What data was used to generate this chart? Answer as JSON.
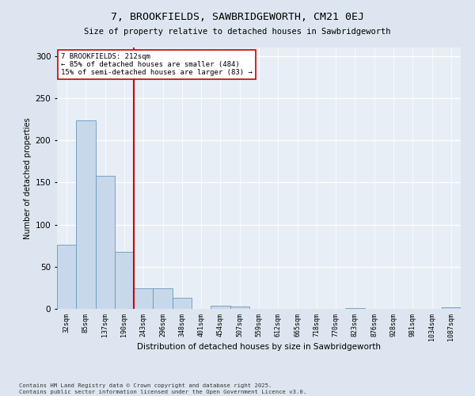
{
  "title": "7, BROOKFIELDS, SAWBRIDGEWORTH, CM21 0EJ",
  "subtitle": "Size of property relative to detached houses in Sawbridgeworth",
  "xlabel": "Distribution of detached houses by size in Sawbridgeworth",
  "ylabel": "Number of detached properties",
  "bar_color": "#c8d8eb",
  "bar_edge_color": "#6699bb",
  "vline_color": "#cc0000",
  "vline_x": 3.5,
  "annotation_text": "7 BROOKFIELDS: 212sqm\n← 85% of detached houses are smaller (484)\n15% of semi-detached houses are larger (83) →",
  "annotation_box_color": "#ffffff",
  "annotation_box_edge": "#cc0000",
  "categories": [
    "32sqm",
    "85sqm",
    "137sqm",
    "190sqm",
    "243sqm",
    "296sqm",
    "348sqm",
    "401sqm",
    "454sqm",
    "507sqm",
    "559sqm",
    "612sqm",
    "665sqm",
    "718sqm",
    "770sqm",
    "823sqm",
    "876sqm",
    "928sqm",
    "981sqm",
    "1034sqm",
    "1087sqm"
  ],
  "values": [
    76,
    224,
    158,
    68,
    24,
    24,
    13,
    0,
    4,
    3,
    0,
    0,
    0,
    0,
    0,
    1,
    0,
    0,
    0,
    0,
    2
  ],
  "ylim": [
    0,
    310
  ],
  "yticks": [
    0,
    50,
    100,
    150,
    200,
    250,
    300
  ],
  "footer1": "Contains HM Land Registry data © Crown copyright and database right 2025.",
  "footer2": "Contains public sector information licensed under the Open Government Licence v3.0.",
  "bg_color": "#dde6f0",
  "plot_bg_color": "#e8eef5"
}
